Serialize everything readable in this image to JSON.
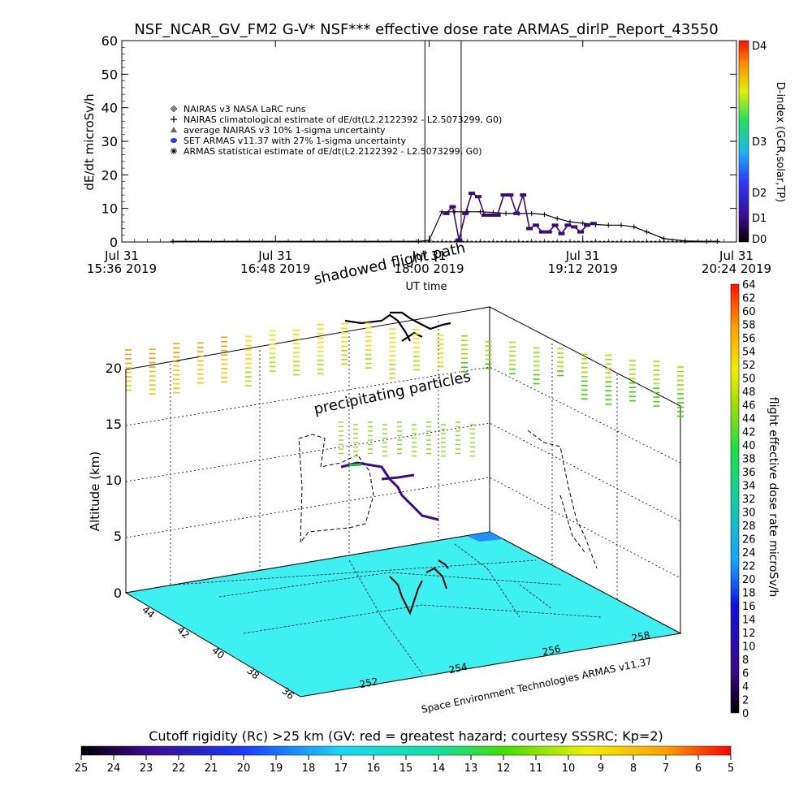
{
  "title": "NSF_NCAR_GV_FM2 G-V* NSF*** effective dose rate ARMAS_dirlP_Report_43550",
  "chart_data": [
    {
      "type": "line",
      "name": "dose-rate-time-series",
      "ylabel": "dE/dt microSv/h",
      "xlabel": "UT time",
      "ylim": [
        0,
        60
      ],
      "yticks": [
        "0",
        "10",
        "20",
        "30",
        "40",
        "50",
        "60"
      ],
      "x_minutes_range": [
        936,
        1224
      ],
      "xticks": [
        {
          "minutes": 936,
          "line1": "Jul 31",
          "line2": "15:36 2019"
        },
        {
          "minutes": 1008,
          "line1": "Jul 31",
          "line2": "16:48 2019"
        },
        {
          "minutes": 1080,
          "line1": "Jul 31",
          "line2": "18:00 2019"
        },
        {
          "minutes": 1152,
          "line1": "Jul 31",
          "line2": "19:12 2019"
        },
        {
          "minutes": 1224,
          "line1": "Jul 31",
          "line2": "20:24 2019"
        }
      ],
      "legend": [
        {
          "marker": "diamond",
          "label": "NAIRAS v3 NASA LaRC runs"
        },
        {
          "marker": "plus",
          "label": "NAIRAS climatological estimate of dE/dt(L2.2122392 - L2.5073299, G0)"
        },
        {
          "marker": "triangle",
          "label": "average NAIRAS v3 10% 1-sigma uncertainty"
        },
        {
          "marker": "dot",
          "label": "SET ARMAS v11.37 with 27% 1-sigma uncertainty"
        },
        {
          "marker": "star",
          "label": "ARMAS statistical estimate of dE/dt(L2.2122392 - L2.5073299, G0)"
        }
      ],
      "vlines_minutes": [
        1078,
        1095
      ],
      "series": [
        {
          "name": "NAIRAS climatological estimate",
          "color": "#000000",
          "x_minutes": [
            960,
            1075,
            1080,
            1086,
            1092,
            1098,
            1104,
            1110,
            1116,
            1122,
            1128,
            1134,
            1140,
            1146,
            1152,
            1158,
            1164,
            1170,
            1176,
            1182,
            1190,
            1200,
            1210,
            1215
          ],
          "values": [
            0.2,
            0.2,
            0.5,
            9.0,
            9.0,
            9.0,
            9.0,
            8.8,
            8.5,
            8.5,
            8.5,
            8.2,
            7.0,
            6.0,
            5.6,
            5.2,
            5.0,
            5.0,
            4.5,
            3.0,
            1.0,
            0.3,
            0.2,
            0.2
          ]
        },
        {
          "name": "SET ARMAS v11.37",
          "color": "#3a0a78",
          "x_minutes": [
            1088,
            1091,
            1094,
            1097,
            1100,
            1103,
            1106,
            1109,
            1112,
            1115,
            1118,
            1121,
            1124,
            1127,
            1130,
            1133,
            1136,
            1139,
            1142,
            1145,
            1148,
            1151,
            1154,
            1157
          ],
          "values": [
            8.5,
            10.5,
            0.6,
            8.5,
            14.5,
            13.5,
            8.0,
            8.0,
            8.0,
            14.0,
            14.0,
            8.5,
            14.0,
            4.0,
            5.0,
            3.0,
            3.0,
            5.0,
            2.5,
            5.0,
            4.5,
            3.0,
            5.0,
            5.5
          ]
        }
      ],
      "dindex_colorbar": {
        "label": "D-index (GCR,solar,TP)",
        "ticks": [
          "D0",
          "D1",
          "D2",
          "D3",
          "D4"
        ]
      }
    },
    {
      "type": "scatter",
      "name": "3d-flight-path",
      "ylabel": "Altitude (km)",
      "zlim": [
        0,
        20
      ],
      "zticks": [
        "0",
        "5",
        "10",
        "15",
        "20"
      ],
      "lat_ticks": [
        "36",
        "38",
        "40",
        "42",
        "44"
      ],
      "lon_ticks": [
        "252",
        "254",
        "256",
        "258"
      ],
      "annotations": [
        "shadowed flight path",
        "precipitating particles"
      ],
      "credit": "Space Environment Technologies ARMAS v11.37",
      "surface_color": "#3ff0f0",
      "dose_colorbar": {
        "label": "flight effective dose rate microSv/h",
        "ticks": [
          "0",
          "2",
          "4",
          "6",
          "8",
          "10",
          "12",
          "14",
          "16",
          "18",
          "20",
          "22",
          "24",
          "26",
          "28",
          "30",
          "32",
          "34",
          "36",
          "38",
          "40",
          "42",
          "44",
          "46",
          "48",
          "50",
          "52",
          "54",
          "56",
          "58",
          "60",
          "62",
          "64"
        ]
      }
    },
    {
      "type": "heatmap",
      "name": "cutoff-rigidity-colorbar",
      "title": "Cutoff rigidity (Rc) >25 km (GV: red = greatest hazard; courtesy SSSRC; Kp=2)",
      "ticks": [
        "25",
        "24",
        "23",
        "22",
        "21",
        "20",
        "19",
        "18",
        "17",
        "16",
        "15",
        "14",
        "13",
        "12",
        "11",
        "10",
        "9",
        "8",
        "7",
        "6",
        "5"
      ]
    }
  ]
}
